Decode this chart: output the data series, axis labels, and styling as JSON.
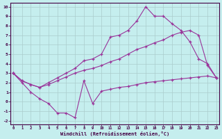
{
  "bg_color": "#c5eeee",
  "grid_color": "#aacccc",
  "line_color": "#993399",
  "xlabel": "Windchill (Refroidissement éolien,°C)",
  "xlim": [
    -0.3,
    23.3
  ],
  "ylim": [
    -2.4,
    10.4
  ],
  "xticks": [
    0,
    1,
    2,
    3,
    4,
    5,
    6,
    7,
    8,
    9,
    10,
    11,
    12,
    13,
    14,
    15,
    16,
    17,
    18,
    19,
    20,
    21,
    22,
    23
  ],
  "yticks": [
    -2,
    -1,
    0,
    1,
    2,
    3,
    4,
    5,
    6,
    7,
    8,
    9,
    10
  ],
  "line1_x": [
    0,
    1,
    2,
    3,
    4,
    5,
    6,
    7,
    8,
    9,
    10,
    11,
    12,
    13,
    14,
    15,
    16,
    17,
    18,
    19,
    20,
    21,
    22,
    23
  ],
  "line1_y": [
    3.0,
    2.0,
    1.0,
    0.3,
    -0.2,
    -1.2,
    -1.2,
    -1.7,
    2.2,
    -0.2,
    1.1,
    1.3,
    1.5,
    1.6,
    1.8,
    2.0,
    2.1,
    2.2,
    2.3,
    2.4,
    2.5,
    2.6,
    2.7,
    2.5
  ],
  "line2_x": [
    0,
    1,
    2,
    3,
    4,
    5,
    6,
    7,
    8,
    9,
    10,
    11,
    12,
    13,
    14,
    15,
    16,
    17,
    18,
    19,
    20,
    21,
    22,
    23
  ],
  "line2_y": [
    3.0,
    2.2,
    1.8,
    1.5,
    1.8,
    2.2,
    2.6,
    3.0,
    3.3,
    3.5,
    3.8,
    4.2,
    4.5,
    5.0,
    5.5,
    5.8,
    6.2,
    6.5,
    7.0,
    7.3,
    7.5,
    7.0,
    3.8,
    2.5
  ],
  "line3_x": [
    0,
    1,
    2,
    3,
    4,
    5,
    6,
    7,
    8,
    9,
    10,
    11,
    12,
    13,
    14,
    15,
    16,
    17,
    18,
    19,
    20,
    21,
    22,
    23
  ],
  "line3_y": [
    3.0,
    2.2,
    1.8,
    1.5,
    2.0,
    2.5,
    3.0,
    3.5,
    4.3,
    4.5,
    5.0,
    6.8,
    7.0,
    7.5,
    8.5,
    10.0,
    9.0,
    9.0,
    8.2,
    7.5,
    6.3,
    4.5,
    4.0,
    2.5
  ]
}
